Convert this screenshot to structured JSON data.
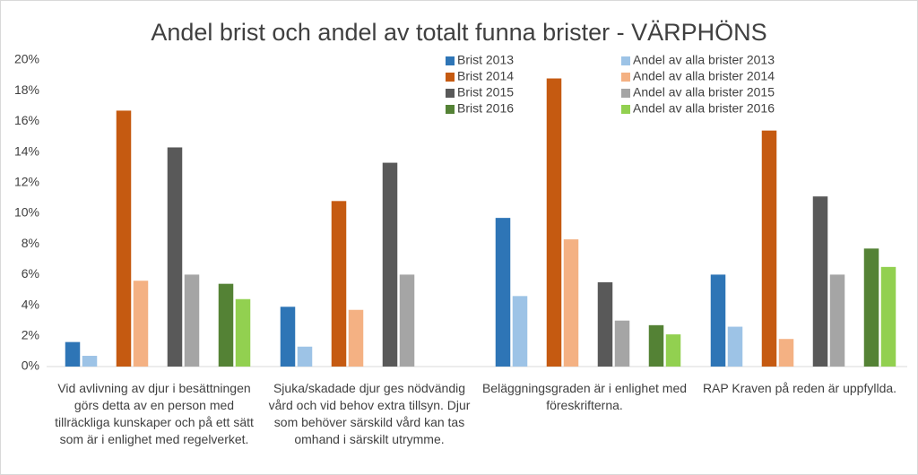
{
  "chart_data": {
    "type": "bar",
    "title": "Andel brist och andel av totalt funna brister - VÄRPHÖNS",
    "categories": [
      "Vid avlivning av djur i besättningen görs detta av en person med tillräckliga kunskaper och på ett sätt som är i enlighet med regelverket.",
      "Sjuka/skadade djur ges nödvändig vård och vid behov extra tillsyn. Djur som behöver särskild vård kan tas omhand i särskilt utrymme.",
      "Beläggningsgraden är i enlighet med föreskrifterna.",
      "RAP Kraven på reden är uppfyllda."
    ],
    "series": [
      {
        "name": "Brist 2013",
        "color": "#2e75b6",
        "values": [
          1.6,
          3.9,
          9.7,
          6.0
        ]
      },
      {
        "name": "Andel av alla brister 2013",
        "color": "#9dc3e6",
        "values": [
          0.7,
          1.3,
          4.6,
          2.6
        ]
      },
      {
        "name": "Brist 2014",
        "color": "#c55a11",
        "values": [
          16.7,
          10.8,
          18.8,
          15.4
        ]
      },
      {
        "name": "Andel av alla brister 2014",
        "color": "#f4b183",
        "values": [
          5.6,
          3.7,
          8.3,
          1.8
        ]
      },
      {
        "name": "Brist 2015",
        "color": "#595959",
        "values": [
          14.3,
          13.3,
          5.5,
          11.1
        ]
      },
      {
        "name": "Andel av alla brister 2015",
        "color": "#a5a5a5",
        "values": [
          6.0,
          6.0,
          3.0,
          6.0
        ]
      },
      {
        "name": "Brist 2016",
        "color": "#548235",
        "values": [
          5.4,
          null,
          2.7,
          7.7
        ]
      },
      {
        "name": "Andel av alla brister 2016",
        "color": "#92d050",
        "values": [
          4.4,
          null,
          2.1,
          6.5
        ]
      }
    ],
    "ylim": [
      0,
      20
    ],
    "yticks": [
      {
        "value": 0,
        "label": "0%"
      },
      {
        "value": 2,
        "label": "2%"
      },
      {
        "value": 4,
        "label": "4%"
      },
      {
        "value": 6,
        "label": "6%"
      },
      {
        "value": 8,
        "label": "8%"
      },
      {
        "value": 10,
        "label": "10%"
      },
      {
        "value": 12,
        "label": "12%"
      },
      {
        "value": 14,
        "label": "14%"
      },
      {
        "value": 16,
        "label": "16%"
      },
      {
        "value": 18,
        "label": "18%"
      },
      {
        "value": 20,
        "label": "20%"
      }
    ],
    "grid": false
  }
}
